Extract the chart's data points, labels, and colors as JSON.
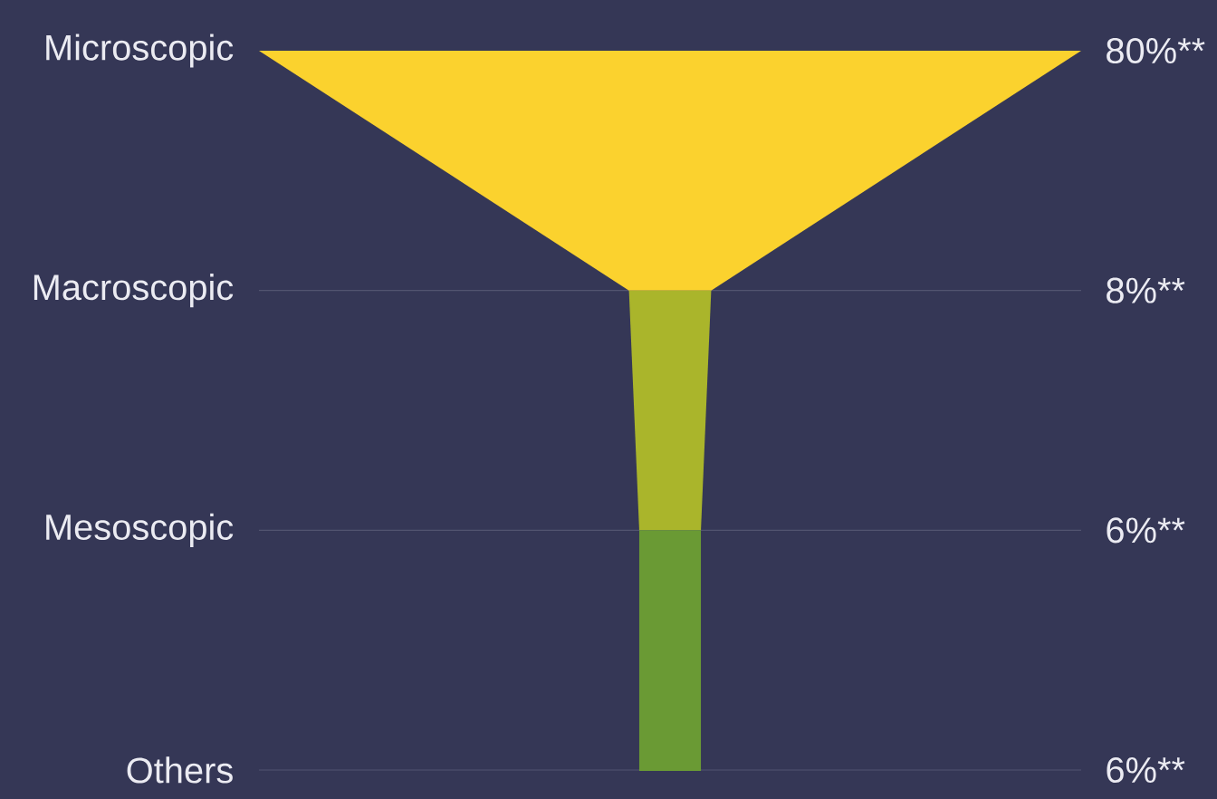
{
  "chart_data": {
    "type": "other",
    "categories": [
      "Microscopic",
      "Macroscopic",
      "Mesoscopic",
      "Others"
    ],
    "values": [
      80,
      8,
      6,
      6
    ],
    "value_labels": [
      "80%**",
      "8%**",
      "6%**",
      "6%**"
    ],
    "colors": [
      "#fbd22e",
      "#aab52b",
      "#6a9a34",
      "#6a9a34"
    ]
  }
}
